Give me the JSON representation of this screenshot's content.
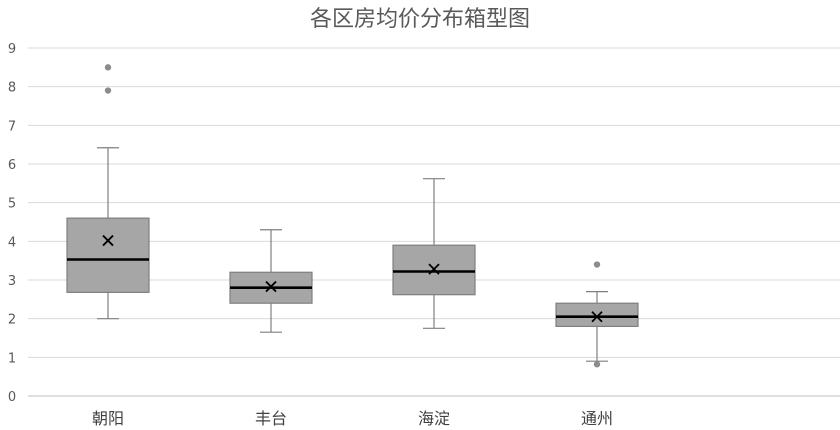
{
  "chart_data": {
    "type": "boxplot",
    "title": "各区房均价分布箱型图",
    "xlabel": "",
    "ylabel": "",
    "ylim": [
      0,
      9
    ],
    "yticks": [
      0,
      1,
      2,
      3,
      4,
      5,
      6,
      7,
      8,
      9
    ],
    "grid": true,
    "legend": "none",
    "categories": [
      "朝阳",
      "丰台",
      "海淀",
      "通州"
    ],
    "boxes": [
      {
        "category": "朝阳",
        "whisker_low": 2.0,
        "q1": 2.68,
        "median": 3.53,
        "q3": 4.6,
        "whisker_high": 6.42,
        "mean": 4.02,
        "outliers": [
          7.9,
          8.5
        ]
      },
      {
        "category": "丰台",
        "whisker_low": 1.65,
        "q1": 2.4,
        "median": 2.8,
        "q3": 3.2,
        "whisker_high": 4.3,
        "mean": 2.83,
        "outliers": []
      },
      {
        "category": "海淀",
        "whisker_low": 1.75,
        "q1": 2.62,
        "median": 3.22,
        "q3": 3.9,
        "whisker_high": 5.62,
        "mean": 3.28,
        "outliers": []
      },
      {
        "category": "通州",
        "whisker_low": 0.9,
        "q1": 1.8,
        "median": 2.05,
        "q3": 2.4,
        "whisker_high": 2.7,
        "mean": 2.05,
        "outliers": [
          0.82,
          3.4
        ]
      }
    ],
    "colors": {
      "box_fill": "#a6a6a6",
      "box_stroke": "#7f7f7f",
      "median": "#000000",
      "mean_marker": "#000000",
      "outlier": "#8c8c8c",
      "grid": "#d9d9d9"
    }
  }
}
